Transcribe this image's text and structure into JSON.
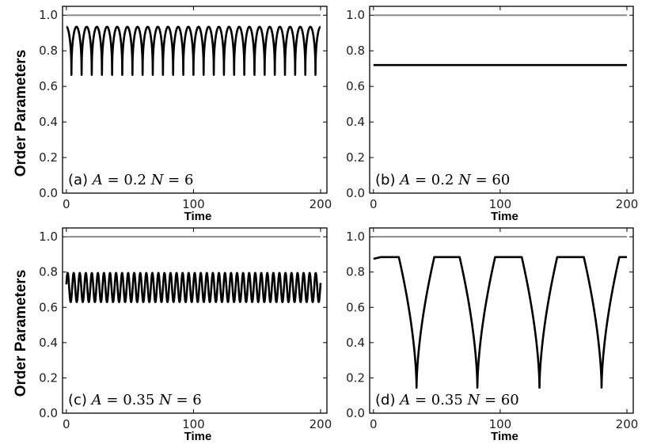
{
  "figure": {
    "ylabel_top": "Order Parameters",
    "ylabel_bottom": "Order Parameters",
    "colors": {
      "line": "#000000",
      "reference": "#8c8c8c",
      "frame": "#000000"
    }
  },
  "chart_data": [
    {
      "id": "a",
      "type": "line",
      "panel_label": "(a)",
      "annotation": {
        "a_var": "A",
        "a_val": "= 0.2",
        "n_var": "N",
        "n_val": "= 6"
      },
      "xlabel": "Time",
      "xlim": [
        -3,
        205
      ],
      "ylim": [
        0,
        1.05
      ],
      "xticks": [
        0,
        100,
        200
      ],
      "yticks": [
        0.0,
        0.2,
        0.4,
        0.6,
        0.8,
        1.0
      ],
      "ytick_labels": [
        "0.0",
        "0.2",
        "0.4",
        "0.6",
        "0.8",
        "1.0"
      ],
      "series": [
        {
          "name": "reference",
          "constant": 1.0,
          "x_range": [
            0,
            200
          ],
          "color": "#8c8c8c"
        },
        {
          "name": "order-parameter",
          "oscillation": {
            "max": 0.935,
            "min": 0.665,
            "period": 8.0,
            "start": 0.93,
            "shape": "cusp"
          },
          "x_range": [
            0,
            200
          ],
          "color": "#000000"
        }
      ]
    },
    {
      "id": "b",
      "type": "line",
      "panel_label": "(b)",
      "annotation": {
        "a_var": "A",
        "a_val": "= 0.2",
        "n_var": "N",
        "n_val": "= 60"
      },
      "xlabel": "Time",
      "xlim": [
        -3,
        205
      ],
      "ylim": [
        0,
        1.05
      ],
      "xticks": [
        0,
        100,
        200
      ],
      "yticks": [
        0.0,
        0.2,
        0.4,
        0.6,
        0.8,
        1.0
      ],
      "ytick_labels": [
        "0.0",
        "0.2",
        "0.4",
        "0.6",
        "0.8",
        "1.0"
      ],
      "series": [
        {
          "name": "reference",
          "constant": 1.0,
          "x_range": [
            0,
            200
          ],
          "color": "#8c8c8c"
        },
        {
          "name": "order-parameter",
          "constant": 0.72,
          "x_range": [
            0,
            200
          ],
          "color": "#000000"
        }
      ]
    },
    {
      "id": "c",
      "type": "line",
      "panel_label": "(c)",
      "annotation": {
        "a_var": "A",
        "a_val": "= 0.35",
        "n_var": "N",
        "n_val": "= 6"
      },
      "xlabel": "Time",
      "xlim": [
        -3,
        205
      ],
      "ylim": [
        0,
        1.05
      ],
      "xticks": [
        0,
        100,
        200
      ],
      "yticks": [
        0.0,
        0.2,
        0.4,
        0.6,
        0.8,
        1.0
      ],
      "ytick_labels": [
        "0.0",
        "0.2",
        "0.4",
        "0.6",
        "0.8",
        "1.0"
      ],
      "series": [
        {
          "name": "reference",
          "constant": 1.0,
          "x_range": [
            0,
            200
          ],
          "color": "#8c8c8c"
        },
        {
          "name": "order-parameter",
          "oscillation": {
            "max": 0.795,
            "min": 0.63,
            "period": 4.76,
            "start": 0.73,
            "shape": "sine"
          },
          "x_range": [
            0,
            200
          ],
          "color": "#000000"
        }
      ]
    },
    {
      "id": "d",
      "type": "line",
      "panel_label": "(d)",
      "annotation": {
        "a_var": "A",
        "a_val": "= 0.35",
        "n_var": "N",
        "n_val": "= 60"
      },
      "xlabel": "Time",
      "xlim": [
        -3,
        205
      ],
      "ylim": [
        0,
        1.05
      ],
      "xticks": [
        0,
        100,
        200
      ],
      "yticks": [
        0.0,
        0.2,
        0.4,
        0.6,
        0.8,
        1.0
      ],
      "ytick_labels": [
        "0.0",
        "0.2",
        "0.4",
        "0.6",
        "0.8",
        "1.0"
      ],
      "series": [
        {
          "name": "reference",
          "constant": 1.0,
          "x_range": [
            0,
            200
          ],
          "color": "#8c8c8c"
        },
        {
          "name": "order-parameter",
          "dips": {
            "baseline": 0.885,
            "start": 0.875,
            "min": 0.145,
            "times": [
              34,
              82,
              131,
              180
            ]
          },
          "x_range": [
            0,
            200
          ],
          "color": "#000000"
        }
      ]
    }
  ]
}
